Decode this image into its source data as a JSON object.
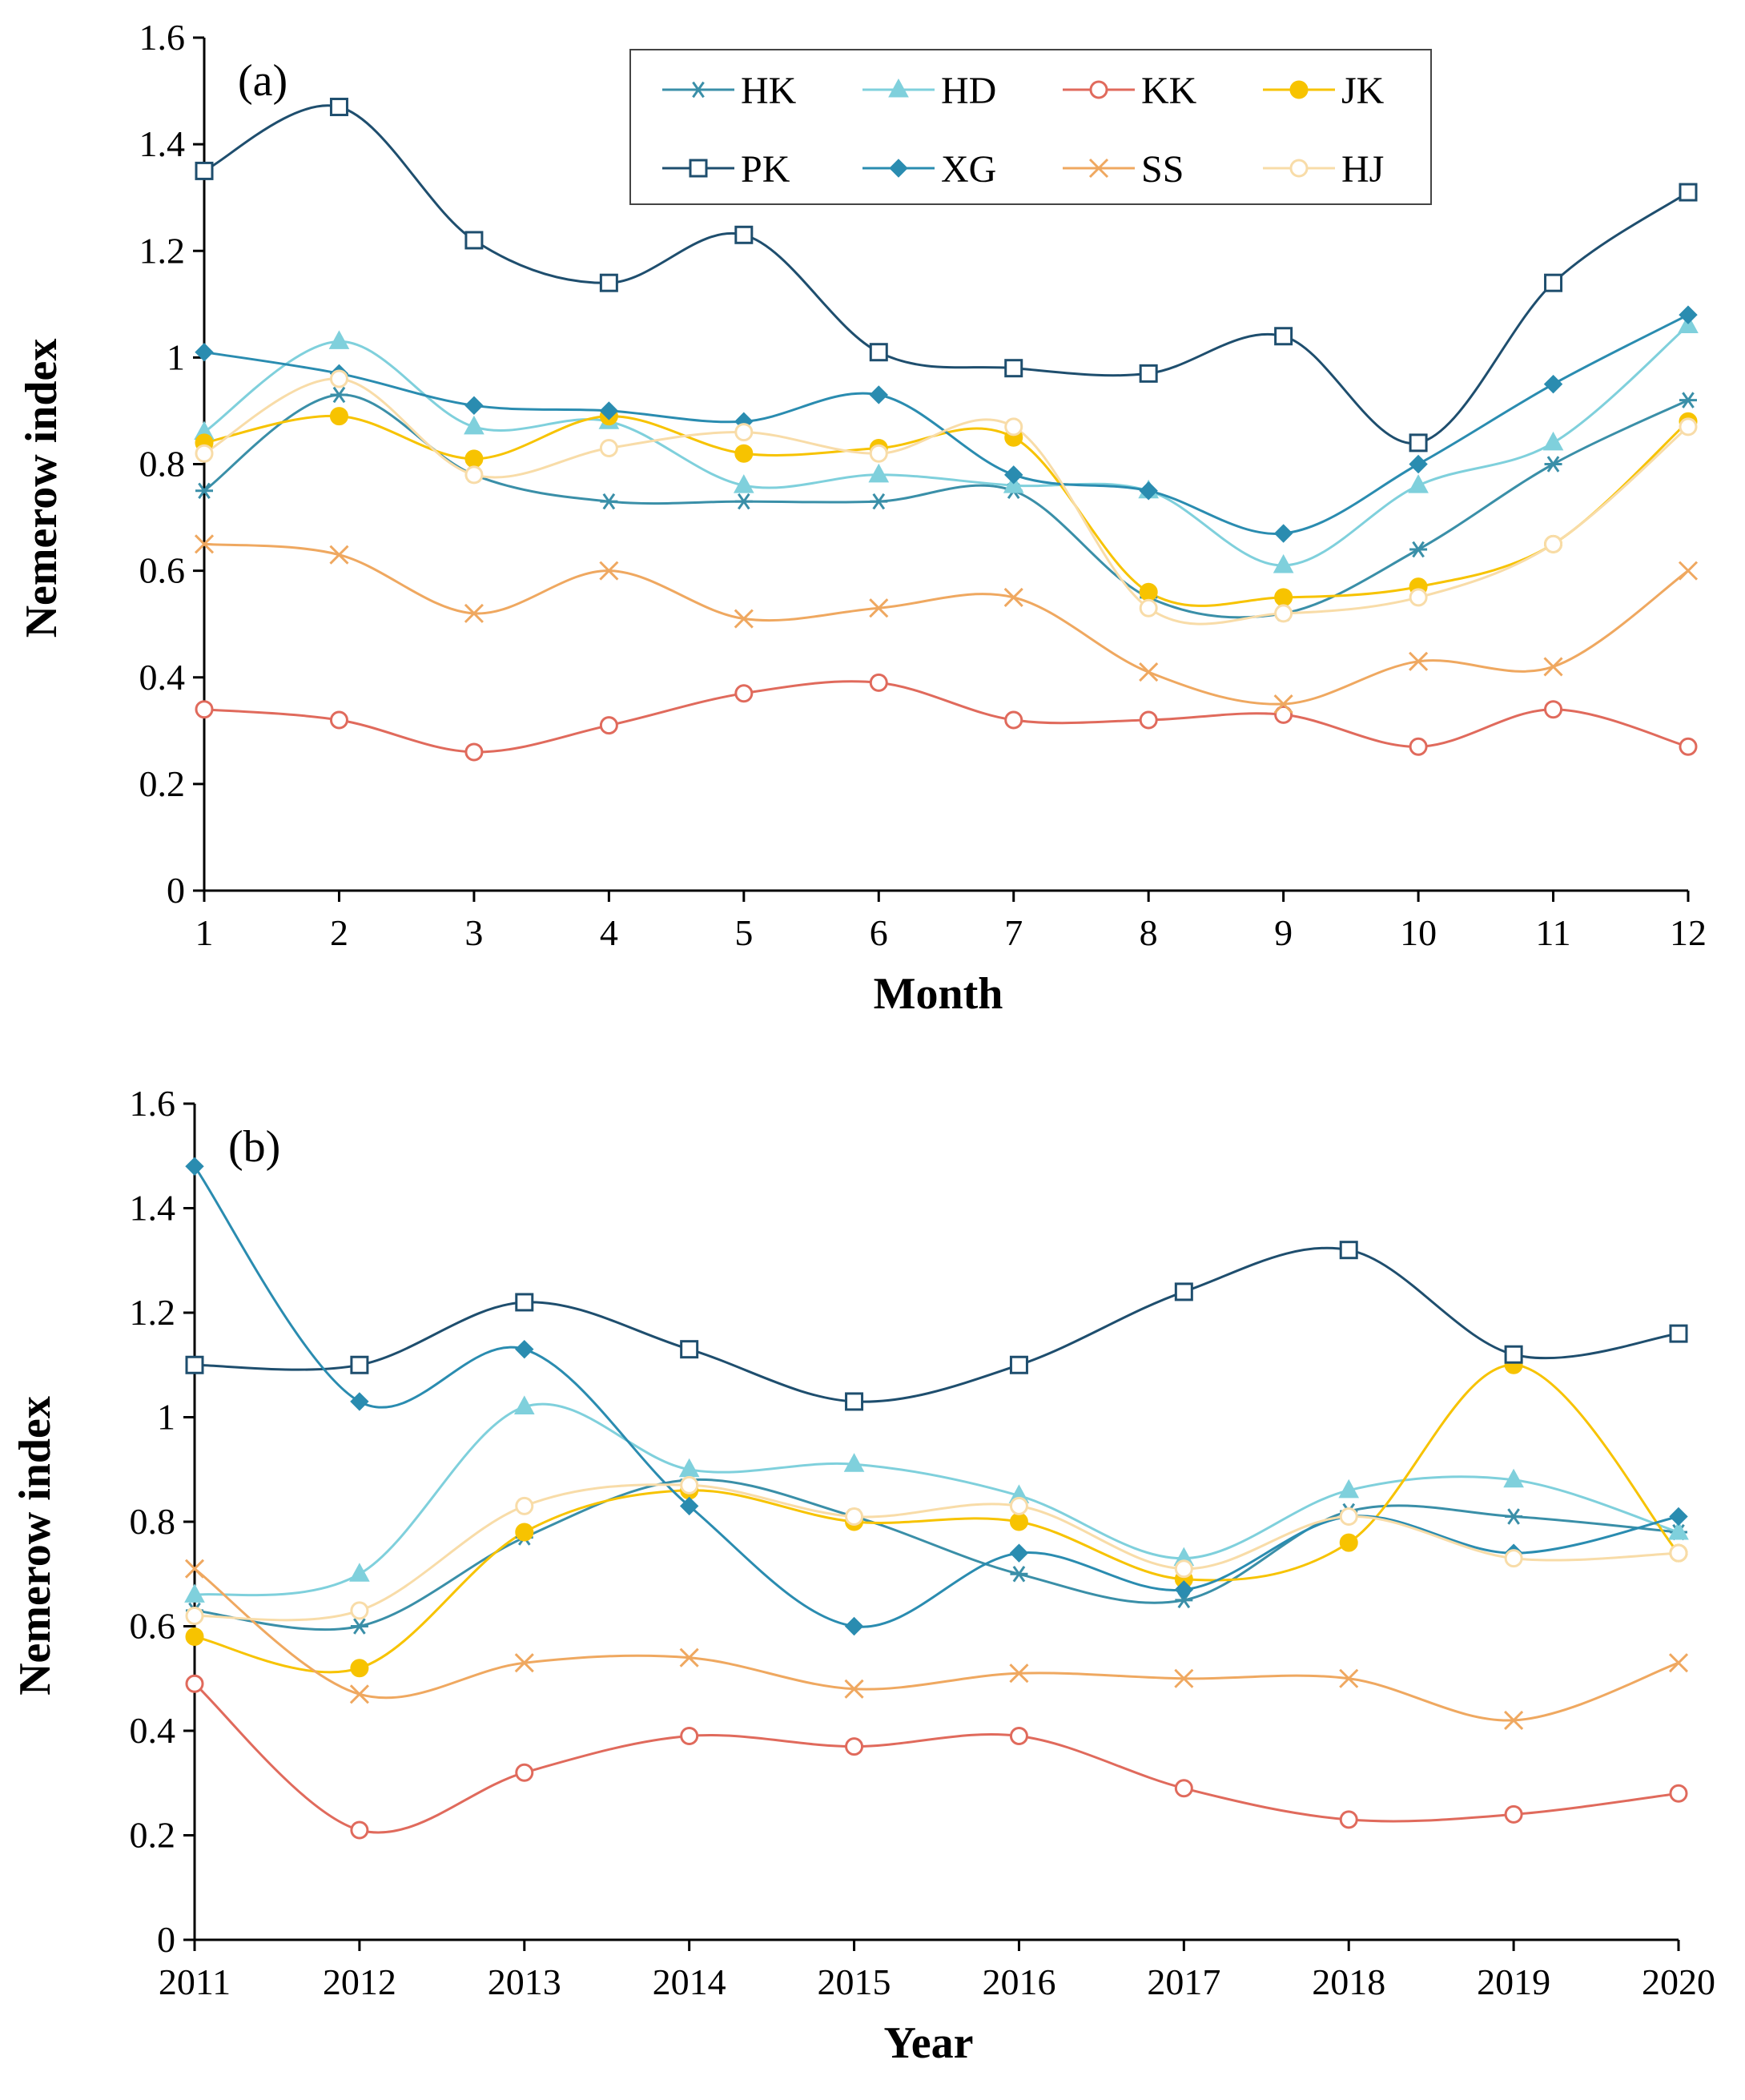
{
  "series_styles": [
    {
      "name": "HK",
      "color": "#3A8FA8",
      "marker": "star"
    },
    {
      "name": "HD",
      "color": "#7FD0DC",
      "marker": "triangle"
    },
    {
      "name": "KK",
      "color": "#E06A5C",
      "marker": "circle-open"
    },
    {
      "name": "JK",
      "color": "#F7C300",
      "marker": "circle-filled"
    },
    {
      "name": "PK",
      "color": "#1E4E6E",
      "marker": "square-open"
    },
    {
      "name": "XG",
      "color": "#2A8CB0",
      "marker": "diamond"
    },
    {
      "name": "SS",
      "color": "#EFA860",
      "marker": "x"
    },
    {
      "name": "HJ",
      "color": "#F8DCA8",
      "marker": "circle-open"
    }
  ],
  "chart_data": [
    {
      "type": "line",
      "panel_label": "(a)",
      "xlabel": "Month",
      "ylabel": "Nemerow index",
      "x": [
        1,
        2,
        3,
        4,
        5,
        6,
        7,
        8,
        9,
        10,
        11,
        12
      ],
      "x_tick_labels": [
        "1",
        "2",
        "3",
        "4",
        "5",
        "6",
        "7",
        "8",
        "9",
        "10",
        "11",
        "12"
      ],
      "ylim": [
        0,
        1.6
      ],
      "y_ticks": [
        0,
        0.2,
        0.4,
        0.6,
        0.8,
        1,
        1.2,
        1.4,
        1.6
      ],
      "y_tick_labels": [
        "0",
        "0.2",
        "0.4",
        "0.6",
        "0.8",
        "1",
        "1.2",
        "1.4",
        "1.6"
      ],
      "legend": "top-center",
      "series": [
        {
          "name": "HK",
          "values": [
            0.75,
            0.93,
            0.78,
            0.73,
            0.73,
            0.73,
            0.75,
            0.55,
            0.52,
            0.64,
            0.8,
            0.92
          ]
        },
        {
          "name": "HD",
          "values": [
            0.86,
            1.03,
            0.87,
            0.88,
            0.76,
            0.78,
            0.76,
            0.75,
            0.61,
            0.76,
            0.84,
            1.06
          ]
        },
        {
          "name": "KK",
          "values": [
            0.34,
            0.32,
            0.26,
            0.31,
            0.37,
            0.39,
            0.32,
            0.32,
            0.33,
            0.27,
            0.34,
            0.27
          ]
        },
        {
          "name": "JK",
          "values": [
            0.84,
            0.89,
            0.81,
            0.89,
            0.82,
            0.83,
            0.85,
            0.56,
            0.55,
            0.57,
            0.65,
            0.88
          ]
        },
        {
          "name": "PK",
          "values": [
            1.35,
            1.47,
            1.22,
            1.14,
            1.23,
            1.01,
            0.98,
            0.97,
            1.04,
            0.84,
            1.14,
            1.31
          ]
        },
        {
          "name": "XG",
          "values": [
            1.01,
            0.97,
            0.91,
            0.9,
            0.88,
            0.93,
            0.78,
            0.75,
            0.67,
            0.8,
            0.95,
            1.08
          ]
        },
        {
          "name": "SS",
          "values": [
            0.65,
            0.63,
            0.52,
            0.6,
            0.51,
            0.53,
            0.55,
            0.41,
            0.35,
            0.43,
            0.42,
            0.6
          ]
        },
        {
          "name": "HJ",
          "values": [
            0.82,
            0.96,
            0.78,
            0.83,
            0.86,
            0.82,
            0.87,
            0.53,
            0.52,
            0.55,
            0.65,
            0.87
          ]
        }
      ]
    },
    {
      "type": "line",
      "panel_label": "(b)",
      "xlabel": "Year",
      "ylabel": "Nemerow index",
      "x": [
        2011,
        2012,
        2013,
        2014,
        2015,
        2016,
        2017,
        2018,
        2019,
        2020
      ],
      "x_tick_labels": [
        "2011",
        "2012",
        "2013",
        "2014",
        "2015",
        "2016",
        "2017",
        "2018",
        "2019",
        "2020"
      ],
      "ylim": [
        0,
        1.6
      ],
      "y_ticks": [
        0,
        0.2,
        0.4,
        0.6,
        0.8,
        1,
        1.2,
        1.4,
        1.6
      ],
      "y_tick_labels": [
        "0",
        "0.2",
        "0.4",
        "0.6",
        "0.8",
        "1",
        "1.2",
        "1.4",
        "1.6"
      ],
      "series": [
        {
          "name": "HK",
          "values": [
            0.63,
            0.6,
            0.77,
            0.88,
            0.81,
            0.7,
            0.65,
            0.82,
            0.81,
            0.78
          ]
        },
        {
          "name": "HD",
          "values": [
            0.66,
            0.7,
            1.02,
            0.9,
            0.91,
            0.85,
            0.73,
            0.86,
            0.88,
            0.78
          ]
        },
        {
          "name": "KK",
          "values": [
            0.49,
            0.21,
            0.32,
            0.39,
            0.37,
            0.39,
            0.29,
            0.23,
            0.24,
            0.28
          ]
        },
        {
          "name": "JK",
          "values": [
            0.58,
            0.52,
            0.78,
            0.86,
            0.8,
            0.8,
            0.69,
            0.76,
            1.1,
            0.74
          ]
        },
        {
          "name": "PK",
          "values": [
            1.1,
            1.1,
            1.22,
            1.13,
            1.03,
            1.1,
            1.24,
            1.32,
            1.12,
            1.16
          ]
        },
        {
          "name": "XG",
          "values": [
            1.48,
            1.03,
            1.13,
            0.83,
            0.6,
            0.74,
            0.67,
            0.81,
            0.74,
            0.81
          ]
        },
        {
          "name": "SS",
          "values": [
            0.71,
            0.47,
            0.53,
            0.54,
            0.48,
            0.51,
            0.5,
            0.5,
            0.42,
            0.53
          ]
        },
        {
          "name": "HJ",
          "values": [
            0.62,
            0.63,
            0.83,
            0.87,
            0.81,
            0.83,
            0.71,
            0.81,
            0.73,
            0.74
          ]
        }
      ]
    }
  ]
}
